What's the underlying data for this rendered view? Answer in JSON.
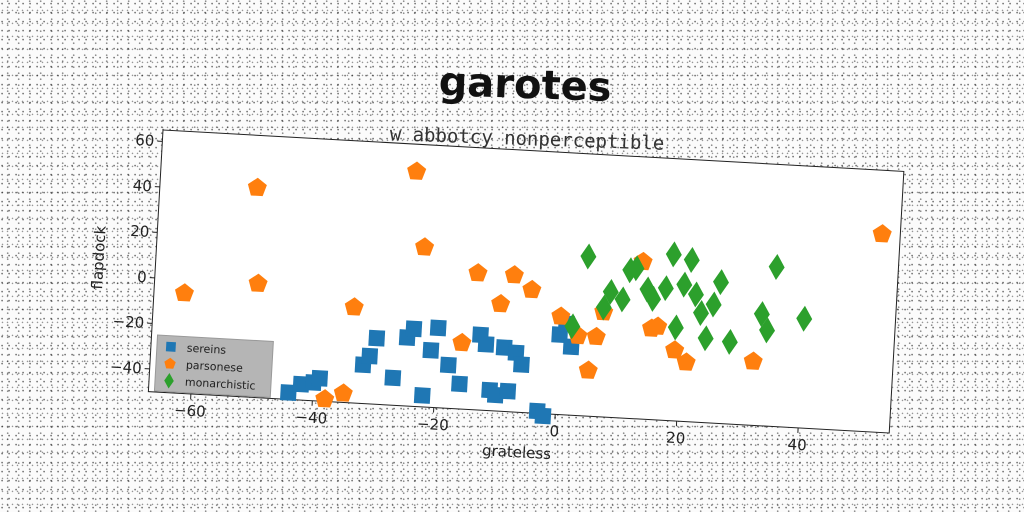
{
  "chart_data": {
    "type": "scatter",
    "title": "garotes",
    "subtitle": "w abbotcy nonperceptible",
    "xlabel": "grateless",
    "ylabel": "flapdock",
    "xlim": [
      -67,
      55
    ],
    "ylim": [
      -50,
      65
    ],
    "xticks": [
      -60,
      -40,
      -20,
      0,
      20,
      40
    ],
    "yticks": [
      -40,
      -20,
      0,
      20,
      40,
      60
    ],
    "xtick_labels": [
      "−60",
      "−40",
      "−20",
      "0",
      "20",
      "40"
    ],
    "ytick_labels": [
      "−40",
      "−20",
      "0",
      "20",
      "40",
      "60"
    ],
    "grid": false,
    "legend_position": "lower-left",
    "series": [
      {
        "name": "sereins",
        "marker": "square",
        "color": "#1f77b4",
        "x": [
          -44,
          -42,
          -40,
          -39,
          -32,
          -31,
          -30,
          -27,
          -25,
          -24,
          -22,
          -21,
          -20,
          -18,
          -16,
          -13,
          -12,
          -11,
          -10,
          -9,
          -8,
          -7,
          -6,
          -3,
          -2,
          0,
          1,
          2
        ],
        "y": [
          -47,
          -43,
          -42,
          -40,
          -33,
          -29,
          -21,
          -38,
          -20,
          -16,
          -45,
          -25,
          -15,
          -31,
          -39,
          -17,
          -21,
          -41,
          -43,
          -22,
          -41,
          -24,
          -29,
          -49,
          -51,
          -15,
          -10,
          -20
        ]
      },
      {
        "name": "parsonese",
        "marker": "pentagon",
        "color": "#ff7f0e",
        "x": [
          -62,
          -51,
          -50,
          -38,
          -35,
          -34,
          -25,
          -23,
          -16,
          -14,
          -10,
          -8,
          -5,
          0,
          3,
          5,
          6,
          7,
          13,
          15,
          16,
          19,
          21,
          32,
          52
        ],
        "y": [
          -6,
          42,
          0,
          -49,
          -46,
          -8,
          53,
          20,
          -21,
          10,
          -3,
          10,
          4,
          -7,
          -15,
          -30,
          -15,
          -4,
          19,
          -10,
          -9,
          -19,
          -24,
          -22,
          37
        ]
      },
      {
        "name": "monarchistic",
        "marker": "diamond",
        "color": "#2ca02c",
        "x": [
          2,
          4,
          7,
          8,
          10,
          11,
          12,
          14,
          15,
          17,
          18,
          19,
          20,
          21,
          22,
          23,
          24,
          25,
          26,
          28,
          33,
          34,
          35,
          40
        ],
        "y": [
          -11,
          20,
          -2,
          5,
          2,
          15,
          16,
          7,
          3,
          8,
          23,
          -9,
          10,
          21,
          6,
          -2,
          -13,
          2,
          12,
          -14,
          -1,
          -8,
          20,
          -2
        ]
      }
    ]
  }
}
